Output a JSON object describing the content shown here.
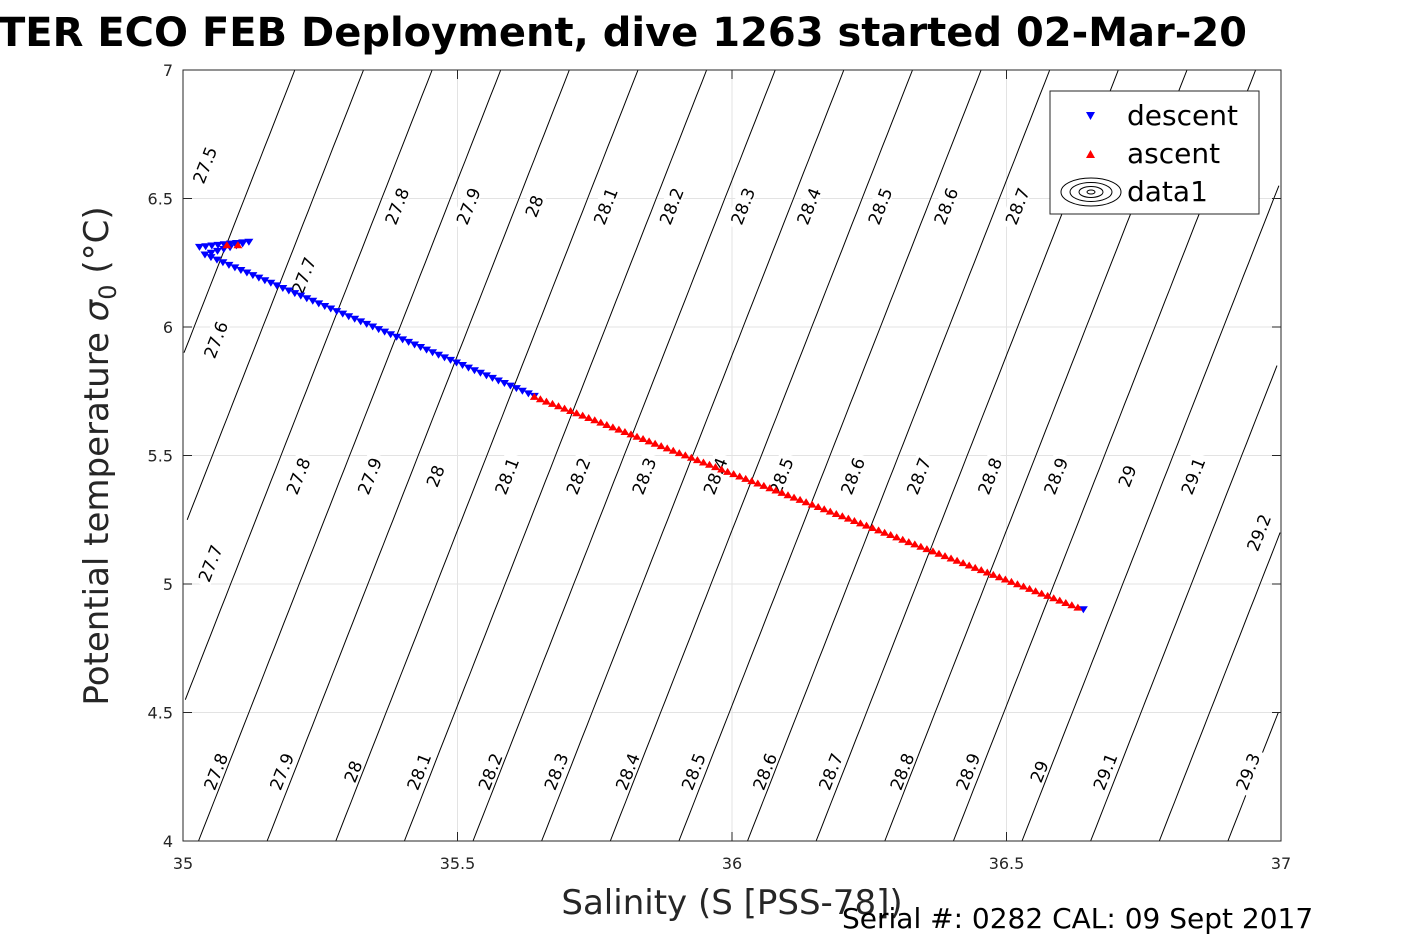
{
  "chart_data": {
    "type": "scatter",
    "title": "TER ECO FEB Deployment, dive 1263 started 02-Mar-20",
    "xlabel": "Salinity (S [PSS-78])",
    "ylabel_main": "Potential temperature ",
    "ylabel_sym": "σ",
    "ylabel_sub": "0",
    "ylabel_unit": " (°C)",
    "xlim": [
      35,
      37
    ],
    "ylim": [
      4,
      7
    ],
    "xticks": [
      "35",
      "35.5",
      "36",
      "36.5",
      "37"
    ],
    "yticks": [
      "4",
      "4.5",
      "5",
      "5.5",
      "6",
      "6.5",
      "7"
    ],
    "grid": true,
    "legend_position": "top-right",
    "legend": [
      "descent",
      "ascent",
      "data1"
    ],
    "colors": {
      "descent": "#0000ff",
      "ascent": "#ff0000",
      "contour": "#000000"
    },
    "series": [
      {
        "name": "descent",
        "marker": "triangle-down",
        "path": [
          [
            35.03,
            6.31
          ],
          [
            35.12,
            6.33
          ],
          [
            35.04,
            6.28
          ],
          [
            35.64,
            5.73
          ],
          [
            36.64,
            4.9
          ]
        ]
      },
      {
        "name": "ascent",
        "marker": "triangle-up",
        "path": [
          [
            35.08,
            6.32
          ],
          [
            35.64,
            5.73
          ],
          [
            36.63,
            4.91
          ]
        ]
      }
    ],
    "contours": {
      "levels": [
        "27.5",
        "27.6",
        "27.7",
        "27.8",
        "27.9",
        "28",
        "28.1",
        "28.2",
        "28.3",
        "28.4",
        "28.5",
        "28.6",
        "28.7",
        "28.8",
        "28.9",
        "29",
        "29.1",
        "29.2",
        "29.3"
      ],
      "visible_labels": [
        {
          "level": "27.5",
          "s": 35.04,
          "t": 6.63
        },
        {
          "level": "27.6",
          "s": 35.06,
          "t": 5.95
        },
        {
          "level": "27.7",
          "s": 35.22,
          "t": 6.2
        },
        {
          "level": "27.7",
          "s": 35.05,
          "t": 5.08
        },
        {
          "level": "27.8",
          "s": 35.39,
          "t": 6.47
        },
        {
          "level": "27.8",
          "s": 35.21,
          "t": 5.42
        },
        {
          "level": "27.8",
          "s": 35.06,
          "t": 4.27
        },
        {
          "level": "27.9",
          "s": 35.52,
          "t": 6.47
        },
        {
          "level": "27.9",
          "s": 35.34,
          "t": 5.42
        },
        {
          "level": "27.9",
          "s": 35.18,
          "t": 4.27
        },
        {
          "level": "28",
          "s": 35.64,
          "t": 6.47
        },
        {
          "level": "28",
          "s": 35.46,
          "t": 5.42
        },
        {
          "level": "28",
          "s": 35.31,
          "t": 4.27
        },
        {
          "level": "28.1",
          "s": 35.77,
          "t": 6.47
        },
        {
          "level": "28.1",
          "s": 35.59,
          "t": 5.42
        },
        {
          "level": "28.1",
          "s": 35.43,
          "t": 4.27
        },
        {
          "level": "28.2",
          "s": 35.89,
          "t": 6.47
        },
        {
          "level": "28.2",
          "s": 35.72,
          "t": 5.42
        },
        {
          "level": "28.2",
          "s": 35.56,
          "t": 4.27
        },
        {
          "level": "28.3",
          "s": 36.02,
          "t": 6.47
        },
        {
          "level": "28.3",
          "s": 35.84,
          "t": 5.42
        },
        {
          "level": "28.3",
          "s": 35.68,
          "t": 4.27
        },
        {
          "level": "28.4",
          "s": 36.14,
          "t": 6.47
        },
        {
          "level": "28.4",
          "s": 35.97,
          "t": 5.42
        },
        {
          "level": "28.4",
          "s": 35.81,
          "t": 4.27
        },
        {
          "level": "28.5",
          "s": 36.27,
          "t": 6.47
        },
        {
          "level": "28.5",
          "s": 36.09,
          "t": 5.42
        },
        {
          "level": "28.5",
          "s": 35.93,
          "t": 4.27
        },
        {
          "level": "28.6",
          "s": 36.39,
          "t": 6.47
        },
        {
          "level": "28.6",
          "s": 36.22,
          "t": 5.42
        },
        {
          "level": "28.6",
          "s": 36.06,
          "t": 4.27
        },
        {
          "level": "28.7",
          "s": 36.52,
          "t": 6.47
        },
        {
          "level": "28.7",
          "s": 36.34,
          "t": 5.42
        },
        {
          "level": "28.7",
          "s": 36.18,
          "t": 4.27
        },
        {
          "level": "28.8",
          "s": 36.47,
          "t": 5.42
        },
        {
          "level": "28.8",
          "s": 36.31,
          "t": 4.27
        },
        {
          "level": "28.9",
          "s": 36.59,
          "t": 5.42
        },
        {
          "level": "28.9",
          "s": 36.43,
          "t": 4.27
        },
        {
          "level": "29",
          "s": 36.72,
          "t": 5.42
        },
        {
          "level": "29",
          "s": 36.56,
          "t": 4.27
        },
        {
          "level": "29.1",
          "s": 36.84,
          "t": 5.42
        },
        {
          "level": "29.1",
          "s": 36.68,
          "t": 4.27
        },
        {
          "level": "29.2",
          "s": 36.96,
          "t": 5.2
        },
        {
          "level": "29.3",
          "s": 36.94,
          "t": 4.27
        }
      ]
    }
  },
  "footer": {
    "serial": "Serial #: 0282  CAL: 09 Sept 2017"
  }
}
